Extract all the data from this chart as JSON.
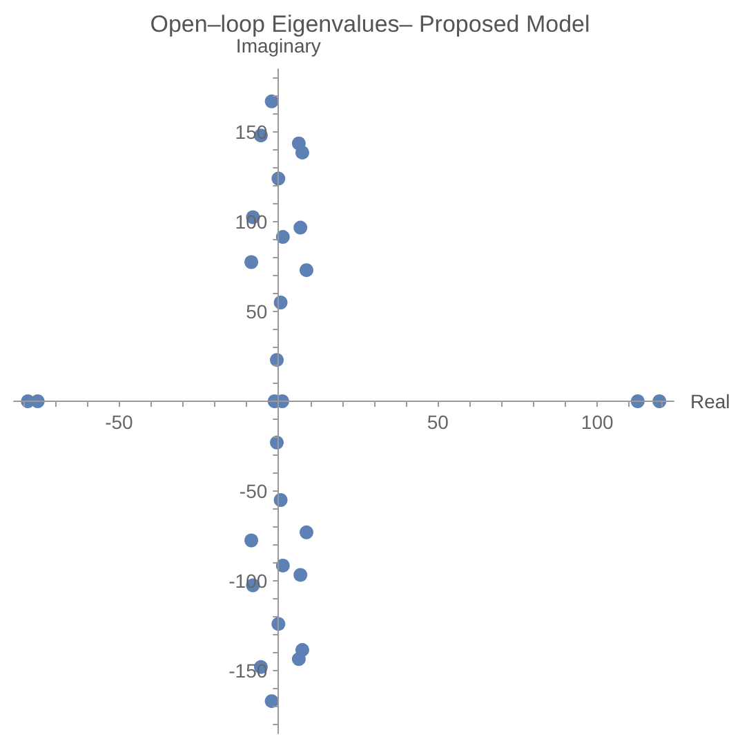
{
  "chart_data": {
    "type": "scatter",
    "title": "Open–loop Eigenvalues– Proposed Model",
    "xlabel": "Real",
    "ylabel": "Imaginary",
    "x": [
      -2.1,
      -5.5,
      6.4,
      7.5,
      0,
      -8,
      6.9,
      1.4,
      -8.5,
      8.8,
      0.7,
      -0.5,
      -1.2,
      1.2,
      -0.5,
      0.7,
      8.8,
      -8.5,
      1.4,
      6.9,
      -8,
      0,
      7.5,
      6.4,
      -5.5,
      -2.1,
      -78.6,
      -75.5,
      112.7,
      119.5
    ],
    "values": [
      167,
      148,
      143.6,
      138.5,
      124,
      102.5,
      96.7,
      91.5,
      77.5,
      73,
      55,
      23,
      0,
      0,
      -23,
      -55,
      -73,
      -77.5,
      -91.5,
      -96.7,
      -102.5,
      -124,
      -138.5,
      -143.6,
      -148,
      -167,
      0,
      0,
      0,
      0
    ],
    "color": "#5e81b5",
    "marker": "circle",
    "grid": false,
    "xlim": [
      -83,
      124
    ],
    "ylim": [
      -185,
      185
    ],
    "xticks": [
      {
        "value": -80,
        "label": null
      },
      {
        "value": -70,
        "label": null
      },
      {
        "value": -60,
        "label": null
      },
      -50,
      {
        "value": -40,
        "label": null
      },
      {
        "value": -30,
        "label": null
      },
      {
        "value": -20,
        "label": null
      },
      {
        "value": -10,
        "label": null
      },
      {
        "value": 10,
        "label": null
      },
      {
        "value": 20,
        "label": null
      },
      {
        "value": 30,
        "label": null
      },
      {
        "value": 40,
        "label": null
      },
      50,
      {
        "value": 60,
        "label": null
      },
      {
        "value": 70,
        "label": null
      },
      {
        "value": 80,
        "label": null
      },
      {
        "value": 90,
        "label": null
      },
      100,
      {
        "value": 110,
        "label": null
      },
      {
        "value": 120,
        "label": null
      }
    ],
    "yticks": [
      {
        "value": -180,
        "label": null
      },
      {
        "value": -170,
        "label": null
      },
      {
        "value": -160,
        "label": null
      },
      -150,
      {
        "value": -140,
        "label": null
      },
      {
        "value": -130,
        "label": null
      },
      {
        "value": -120,
        "label": null
      },
      {
        "value": -110,
        "label": null
      },
      -100,
      {
        "value": -90,
        "label": null
      },
      {
        "value": -80,
        "label": null
      },
      {
        "value": -70,
        "label": null
      },
      {
        "value": -60,
        "label": null
      },
      -50,
      {
        "value": -40,
        "label": null
      },
      {
        "value": -30,
        "label": null
      },
      {
        "value": -20,
        "label": null
      },
      {
        "value": -10,
        "label": null
      },
      {
        "value": 10,
        "label": null
      },
      {
        "value": 20,
        "label": null
      },
      {
        "value": 30,
        "label": null
      },
      {
        "value": 40,
        "label": null
      },
      50,
      {
        "value": 60,
        "label": null
      },
      {
        "value": 70,
        "label": null
      },
      {
        "value": 80,
        "label": null
      },
      {
        "value": 90,
        "label": null
      },
      100,
      {
        "value": 110,
        "label": null
      },
      {
        "value": 120,
        "label": null
      },
      {
        "value": 130,
        "label": null
      },
      {
        "value": 140,
        "label": null
      },
      150,
      {
        "value": 160,
        "label": null
      },
      {
        "value": 170,
        "label": null
      },
      {
        "value": 180,
        "label": null
      }
    ]
  }
}
